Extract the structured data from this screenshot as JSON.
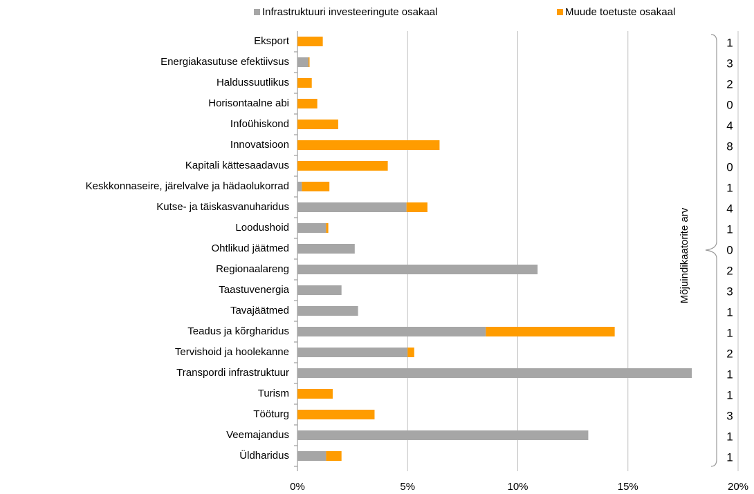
{
  "chart_data": {
    "type": "stacked_barh",
    "categories": [
      "Eksport",
      "Energiakasutuse efektiivsus",
      "Haldussuutlikus",
      "Horisontaalne abi",
      "Infoühiskond",
      "Innovatsioon",
      "Kapitali kättesaadavus",
      "Keskkonnaseire, järelvalve ja hädaolukorrad",
      "Kutse- ja täiskasvanuharidus",
      "Loodushoid",
      "Ohtlikud jäätmed",
      "Regionaalareng",
      "Taastuvenergia",
      "Tavajäätmed",
      "Teadus ja kõrgharidus",
      "Tervishoid ja hoolekanne",
      "Transpordi infrastruktuur",
      "Turism",
      "Tööturg",
      "Veemajandus",
      "Üldharidus"
    ],
    "series": [
      {
        "name": "Infrastruktuuri investeeringute osakaal",
        "color": "#a6a6a6",
        "values": [
          0,
          0.5,
          0,
          0,
          0,
          0,
          0,
          0.2,
          4.95,
          1.3,
          2.6,
          10.9,
          2.0,
          2.75,
          8.55,
          5.0,
          17.9,
          0,
          0,
          13.2,
          1.3
        ]
      },
      {
        "name": "Muude toetuste osakaal",
        "color": "#ff9c00",
        "values": [
          1.15,
          0.05,
          0.65,
          0.9,
          1.85,
          6.45,
          4.1,
          1.25,
          0.95,
          0.1,
          0,
          0,
          0,
          0,
          5.85,
          0.3,
          0,
          1.6,
          3.5,
          0,
          0.7
        ]
      }
    ],
    "xlim": [
      0,
      20
    ],
    "xticks": [
      {
        "value": 0,
        "label": "0%"
      },
      {
        "value": 5,
        "label": "5%"
      },
      {
        "value": 10,
        "label": "10%"
      },
      {
        "value": 15,
        "label": "15%"
      },
      {
        "value": 20,
        "label": "20%"
      }
    ],
    "grid": true,
    "legend": "top",
    "side_label": "Mõjuindikaatorite arv",
    "side_values": [
      1,
      3,
      2,
      0,
      4,
      8,
      0,
      1,
      4,
      1,
      0,
      2,
      3,
      1,
      1,
      2,
      1,
      1,
      3,
      1,
      1
    ]
  }
}
